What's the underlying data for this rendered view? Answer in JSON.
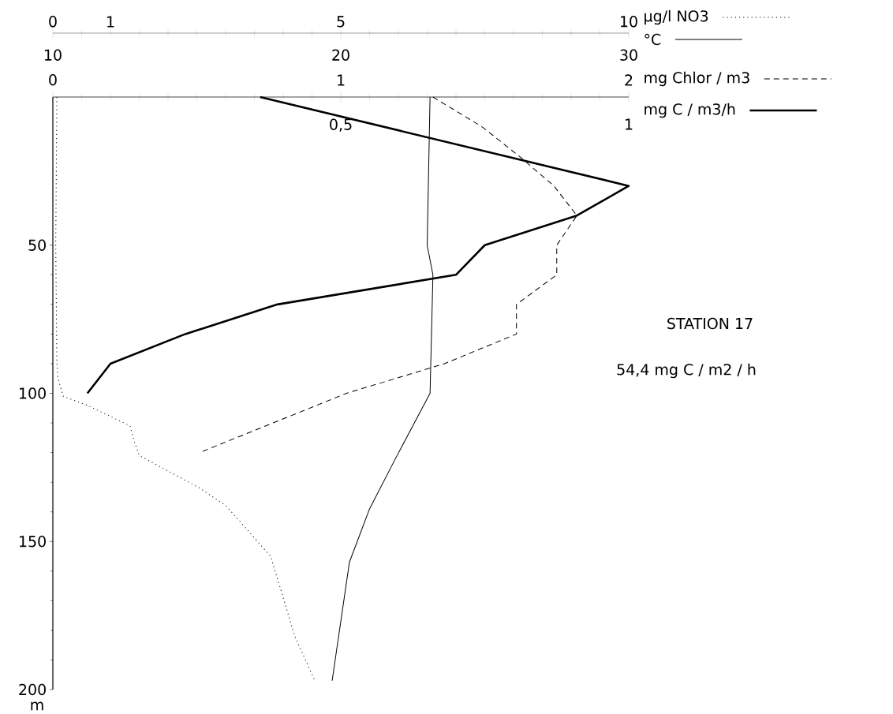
{
  "chart_data": [
    {
      "type": "line",
      "ylim": [
        200,
        0
      ],
      "tick_labels": "x",
      "xlim": [
        10,
        30
      ],
      "xticks": [
        10,
        20,
        30
      ],
      "x2lim": [
        0,
        10
      ],
      "x2ticks": [
        0,
        1,
        5,
        10
      ],
      "legend": "top right",
      "series": [
        {
          "name": "µg/l  NO3",
          "color": "#000000",
          "axis": "x2",
          "line_style": "dotted",
          "x": [
            0.07,
            0.05,
            0.07,
            0.09,
            0.18,
            0.59,
            1.34,
            1.41,
            1.5,
            2.55,
            3.01,
            3.78,
            3.97,
            4.2,
            4.55
          ],
          "values": [
            0,
            50,
            90,
            95,
            101,
            104,
            111,
            116,
            121,
            132,
            138,
            155,
            167,
            182,
            197
          ]
        },
        {
          "name": "°C",
          "color": "#000000",
          "line_style": "solid",
          "x": [
            23.1,
            23.0,
            23.2,
            23.1,
            21.9,
            21.0,
            20.3,
            19.7
          ],
          "values": [
            0,
            50,
            60,
            100,
            122,
            139,
            157,
            197
          ]
        }
      ]
    },
    {
      "type": "line",
      "ylabel": "m",
      "ylim": [
        200,
        0
      ],
      "yticks": [
        50,
        100,
        150,
        200
      ],
      "xlim": [
        0,
        1
      ],
      "xticks": [
        {
          "value": 0.5,
          "label": "0,5"
        },
        1
      ],
      "x2lim": [
        0,
        2
      ],
      "x2ticks": [
        0,
        1,
        2
      ],
      "legend": "top right",
      "annotations": [
        "STATION 17",
        "54,4 mg C / m2 / h"
      ],
      "series": [
        {
          "name": "mg Chlor / m3",
          "color": "#000000",
          "axis": "x2",
          "line_style": "dashed",
          "x": [
            1.32,
            1.49,
            1.62,
            1.74,
            1.82,
            1.75,
            1.75,
            1.61,
            1.61,
            1.36,
            1.02,
            0.51
          ],
          "values": [
            0,
            10,
            20,
            30,
            40,
            50,
            60,
            70,
            80,
            90,
            100,
            120
          ]
        },
        {
          "name": "mg C / m3/h",
          "color": "#000000",
          "line_style": "solid",
          "x": [
            0.36,
            1.0,
            0.91,
            0.75,
            0.7,
            0.39,
            0.23,
            0.1,
            0.06
          ],
          "values": [
            0,
            30,
            40,
            50,
            60,
            70,
            80,
            90,
            100
          ]
        }
      ]
    }
  ]
}
